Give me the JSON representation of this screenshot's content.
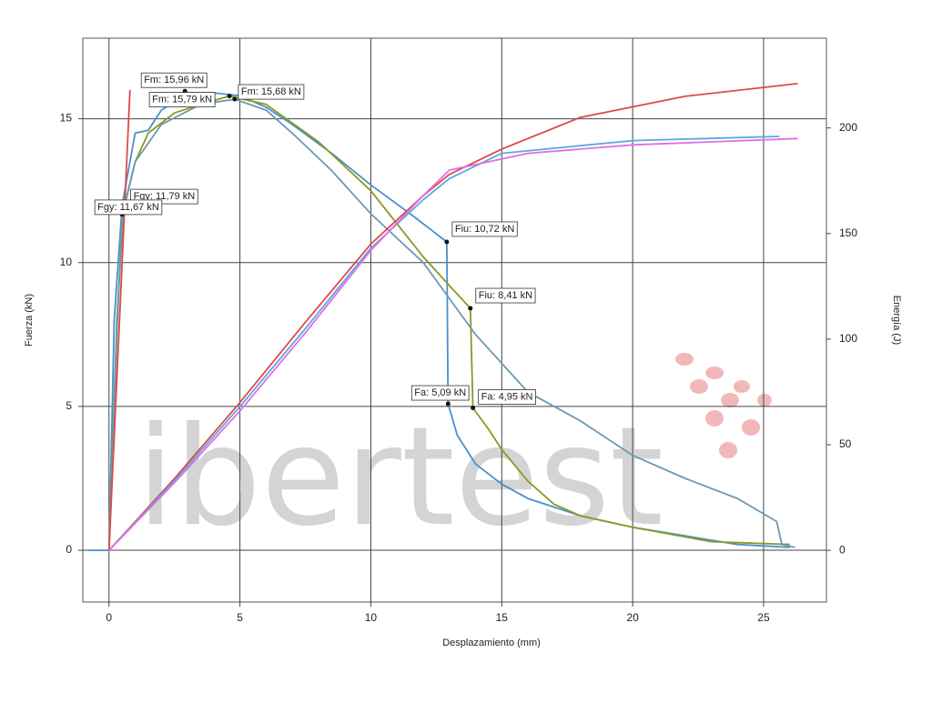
{
  "chart_data": {
    "type": "line",
    "watermark": "ibertest",
    "xlabel": "Desplazamiento (mm)",
    "ylabel": "Fuerza (kN)",
    "y2label": "Energía (J)",
    "xlim": [
      -1,
      27.4
    ],
    "xticks": [
      0,
      5,
      10,
      15,
      20,
      25
    ],
    "ylim": [
      -1.8,
      17.8
    ],
    "yticks": [
      0,
      5,
      10,
      15
    ],
    "y2lim": [
      -24.5,
      242.5
    ],
    "y2ticks": [
      0,
      50,
      100,
      150,
      200
    ],
    "grid": true,
    "series": [
      {
        "color": "#4a8fcc",
        "axis": "y",
        "x": [
          -0.8,
          -0.3,
          0,
          0.2,
          0.5,
          1,
          1.5,
          2,
          3,
          4,
          5,
          6,
          7,
          8.5,
          10,
          11.5,
          12.9,
          12.95,
          13.3,
          14,
          15,
          16,
          18,
          20,
          22,
          24,
          26
        ],
        "values": [
          0,
          0,
          0,
          8,
          12,
          14.5,
          14.6,
          15.3,
          15.9,
          15.9,
          15.8,
          15.4,
          14.8,
          13.8,
          12.7,
          11.7,
          10.72,
          5.09,
          4,
          3,
          2.3,
          1.8,
          1.2,
          0.8,
          0.5,
          0.2,
          0.1
        ]
      },
      {
        "color": "#8a9a1e",
        "axis": "y",
        "x": [
          0,
          0.3,
          0.55,
          1,
          1.5,
          2.5,
          3.5,
          4.6,
          6,
          8,
          10,
          12,
          13,
          13.8,
          13.9,
          14.5,
          15,
          16,
          17,
          18,
          20,
          23,
          26
        ],
        "values": [
          0,
          8,
          11.79,
          13.5,
          14.5,
          15.2,
          15.5,
          15.79,
          15.5,
          14.2,
          12.5,
          10.2,
          9.2,
          8.41,
          4.95,
          4.2,
          3.5,
          2.4,
          1.6,
          1.2,
          0.8,
          0.3,
          0.2
        ]
      },
      {
        "color": "#6a9ab5",
        "axis": "y",
        "x": [
          0,
          0.3,
          0.5,
          1,
          2,
          3.5,
          4.8,
          6,
          7,
          8.5,
          10,
          12,
          14,
          16,
          18,
          20,
          22,
          24,
          25.5,
          25.7,
          26.2
        ],
        "values": [
          0,
          7.5,
          11.67,
          13.5,
          14.8,
          15.5,
          15.68,
          15.3,
          14.5,
          13.2,
          11.7,
          10,
          7.5,
          5.5,
          4.5,
          3.3,
          2.5,
          1.8,
          1.0,
          0.2,
          0.1
        ]
      },
      {
        "color": "#e04848",
        "axis": "y",
        "x": [
          0,
          0.8
        ],
        "values": [
          0,
          16
        ]
      },
      {
        "color": "#e04848",
        "axis": "y2",
        "x": [
          0,
          2.5,
          5,
          7.5,
          10,
          12,
          13,
          15,
          18,
          22,
          26.3
        ],
        "values": [
          0,
          34,
          70,
          108,
          145,
          168,
          178,
          190,
          205,
          215,
          221
        ]
      },
      {
        "color": "#5aa8e0",
        "axis": "y2",
        "x": [
          0,
          2.5,
          5,
          7.5,
          10,
          12,
          13,
          15,
          20,
          25.6
        ],
        "values": [
          0,
          33,
          68,
          105,
          143,
          166,
          176,
          188,
          194,
          196
        ]
      },
      {
        "color": "#e070e0",
        "axis": "y2",
        "x": [
          0,
          2.5,
          5,
          7.5,
          10,
          12,
          13,
          16,
          20,
          26.3
        ],
        "values": [
          0,
          32,
          66,
          103,
          142,
          168,
          180,
          188,
          192,
          195
        ]
      }
    ],
    "annotations": [
      {
        "text": "Fm: 15,96 kN",
        "x": 2.9,
        "y": 15.96
      },
      {
        "text": "Fm: 15,68 kN",
        "x": 4.8,
        "y": 15.68
      },
      {
        "text": "Fm: 15,79 kN",
        "x": 4.6,
        "y": 15.79
      },
      {
        "text": "Fgy: 11,79 kN",
        "x": 0.55,
        "y": 11.79
      },
      {
        "text": "Fgy: 11,67 kN",
        "x": 0.5,
        "y": 11.67
      },
      {
        "text": "Fiu: 10,72 kN",
        "x": 12.9,
        "y": 10.72
      },
      {
        "text": "Fiu: 8,41 kN",
        "x": 13.8,
        "y": 8.41
      },
      {
        "text": "Fa: 5,09 kN",
        "x": 12.95,
        "y": 5.09
      },
      {
        "text": "Fa: 4,95 kN",
        "x": 13.9,
        "y": 4.95
      }
    ]
  }
}
